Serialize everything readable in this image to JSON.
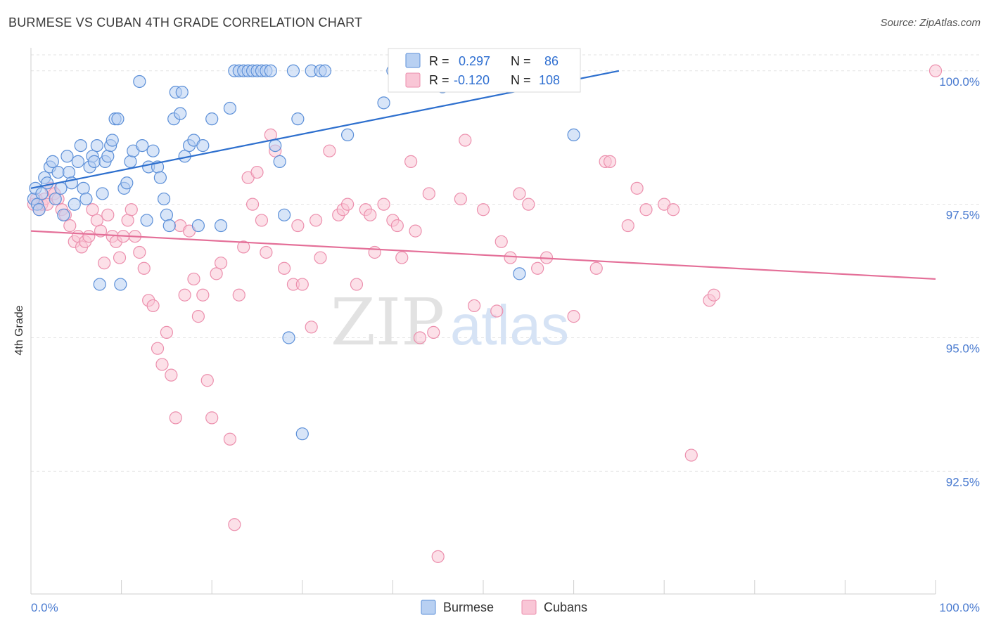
{
  "header": {
    "title": "BURMESE VS CUBAN 4TH GRADE CORRELATION CHART",
    "source": "Source: ZipAtlas.com"
  },
  "watermark": {
    "part1": "ZIP",
    "part2": "atlas"
  },
  "colors": {
    "burmese_fill": "#b8d0f2",
    "burmese_stroke": "#5b8fd8",
    "burmese_line": "#2d6fce",
    "cubans_fill": "#f9c6d6",
    "cubans_stroke": "#ec8fad",
    "cubans_line": "#e46f98",
    "tick_text": "#4a7bd0",
    "grid": "#e3e3e3"
  },
  "stats": {
    "burmese": {
      "r_label": "R =",
      "r_value": "0.297",
      "n_label": "N =",
      "n_value": "86"
    },
    "cubans": {
      "r_label": "R =",
      "r_value": "-0.120",
      "n_label": "N =",
      "n_value": "108"
    }
  },
  "legend": {
    "burmese": "Burmese",
    "cubans": "Cubans"
  },
  "chart_data": {
    "type": "scatter",
    "title": "BURMESE VS CUBAN 4TH GRADE CORRELATION CHART",
    "xlabel": "",
    "ylabel": "4th Grade",
    "xlim": [
      0,
      100
    ],
    "ylim": [
      90.2,
      100.3
    ],
    "x_tick_labels": [
      "0.0%",
      "100.0%"
    ],
    "y_ticks": [
      92.5,
      95.0,
      97.5,
      100.0
    ],
    "y_tick_labels": [
      "92.5%",
      "95.0%",
      "97.5%",
      "100.0%"
    ],
    "grid": true,
    "legend_position": "bottom-center",
    "series": [
      {
        "name": "Burmese",
        "trend": {
          "x": [
            0,
            65
          ],
          "y": [
            97.8,
            100.0
          ]
        },
        "x": [
          0.3,
          0.5,
          0.7,
          0.9,
          1.2,
          1.5,
          1.8,
          2.1,
          2.4,
          2.7,
          3,
          3.3,
          3.6,
          4,
          4.2,
          4.5,
          4.8,
          5.2,
          5.5,
          5.8,
          6.1,
          6.5,
          6.8,
          7,
          7.3,
          7.6,
          7.9,
          8.2,
          8.5,
          8.8,
          9,
          9.3,
          9.6,
          9.9,
          10.3,
          10.6,
          11,
          11.3,
          12,
          12.3,
          12.8,
          13,
          13.5,
          14,
          14.3,
          14.7,
          15,
          15.3,
          15.8,
          16,
          16.5,
          16.7,
          17,
          17.5,
          18,
          18.5,
          19,
          20,
          21,
          22,
          22.5,
          23,
          23.5,
          24,
          24.5,
          25,
          25.5,
          26,
          26.5,
          27,
          27.5,
          28,
          28.5,
          29,
          29.5,
          30,
          31,
          32,
          32.5,
          35,
          39,
          40,
          43,
          45.5,
          54,
          60
        ],
        "y": [
          97.6,
          97.8,
          97.5,
          97.4,
          97.7,
          98,
          97.9,
          98.2,
          98.3,
          97.6,
          98.1,
          97.8,
          97.3,
          98.4,
          98.1,
          97.9,
          97.5,
          98.3,
          98.6,
          97.8,
          97.6,
          98.2,
          98.4,
          98.3,
          98.6,
          96,
          97.7,
          98.3,
          98.4,
          98.6,
          98.7,
          99.1,
          99.1,
          96,
          97.8,
          97.9,
          98.3,
          98.5,
          99.8,
          98.6,
          97.2,
          98.2,
          98.5,
          98.2,
          98,
          97.6,
          97.3,
          97.1,
          99.1,
          99.6,
          99.2,
          99.6,
          98.4,
          98.6,
          98.7,
          97.1,
          98.6,
          99.1,
          97.1,
          99.3,
          100,
          100,
          100,
          100,
          100,
          100,
          100,
          100,
          100,
          98.6,
          98.3,
          97.3,
          95,
          100,
          99.1,
          93.2,
          100,
          100,
          100,
          98.8,
          99.4,
          100,
          100,
          99.7,
          96.2,
          98.8
        ]
      },
      {
        "name": "Cubans",
        "trend": {
          "x": [
            0,
            100
          ],
          "y": [
            97.0,
            96.1
          ]
        },
        "x": [
          0.3,
          0.6,
          0.9,
          1.2,
          1.5,
          1.8,
          2.2,
          2.6,
          3,
          3.4,
          3.8,
          4.3,
          4.8,
          5.2,
          5.6,
          6,
          6.4,
          6.8,
          7.3,
          7.7,
          8.1,
          8.5,
          9,
          9.4,
          9.8,
          10.2,
          10.7,
          11.1,
          11.5,
          12,
          12.5,
          13,
          13.5,
          14,
          14.5,
          15,
          15.5,
          16,
          16.5,
          17,
          17.5,
          18,
          18.5,
          19,
          19.5,
          20,
          20.5,
          21,
          22,
          22.5,
          23,
          23.5,
          24,
          24.5,
          25,
          25.5,
          26,
          26.5,
          27,
          28,
          29,
          29.5,
          30,
          31,
          31.5,
          32,
          33,
          34,
          34.5,
          35,
          36,
          37,
          37.5,
          38,
          39,
          40,
          40.5,
          41,
          42,
          42.5,
          43,
          44,
          44.5,
          45,
          47.5,
          48,
          49,
          50,
          51.5,
          52,
          53,
          54,
          55,
          56,
          57,
          60,
          62.5,
          63.5,
          64,
          66,
          67,
          68,
          70,
          71,
          73,
          75,
          75.5,
          100
        ],
        "y": [
          97.5,
          97.6,
          97.4,
          97.5,
          97.6,
          97.5,
          97.8,
          97.7,
          97.6,
          97.4,
          97.3,
          97.1,
          96.8,
          96.9,
          96.7,
          96.8,
          96.9,
          97.4,
          97.2,
          97,
          96.4,
          97.3,
          96.9,
          96.8,
          96.5,
          96.9,
          97.2,
          97.4,
          96.9,
          96.6,
          96.3,
          95.7,
          95.6,
          94.8,
          94.5,
          95.1,
          94.3,
          93.5,
          97.1,
          95.8,
          97,
          96.1,
          95.4,
          95.8,
          94.2,
          93.5,
          96.2,
          96.4,
          93.1,
          91.5,
          95.8,
          96.7,
          98,
          97.5,
          98.1,
          97.2,
          96.6,
          98.8,
          98.5,
          96.3,
          96,
          97.1,
          96,
          95.2,
          97.2,
          96.5,
          98.5,
          97.3,
          97.4,
          97.5,
          96,
          97.4,
          97.3,
          96.6,
          97.5,
          97.2,
          97.1,
          96.5,
          98.3,
          97,
          95,
          97.7,
          95.1,
          90.9,
          97.6,
          98.7,
          95.6,
          97.4,
          95.5,
          96.8,
          96.5,
          97.7,
          97.5,
          96.3,
          96.5,
          95.4,
          96.3,
          98.3,
          98.3,
          97.1,
          97.8,
          97.4,
          97.5,
          97.4,
          92.8,
          95.7,
          95.8,
          100
        ]
      }
    ]
  }
}
